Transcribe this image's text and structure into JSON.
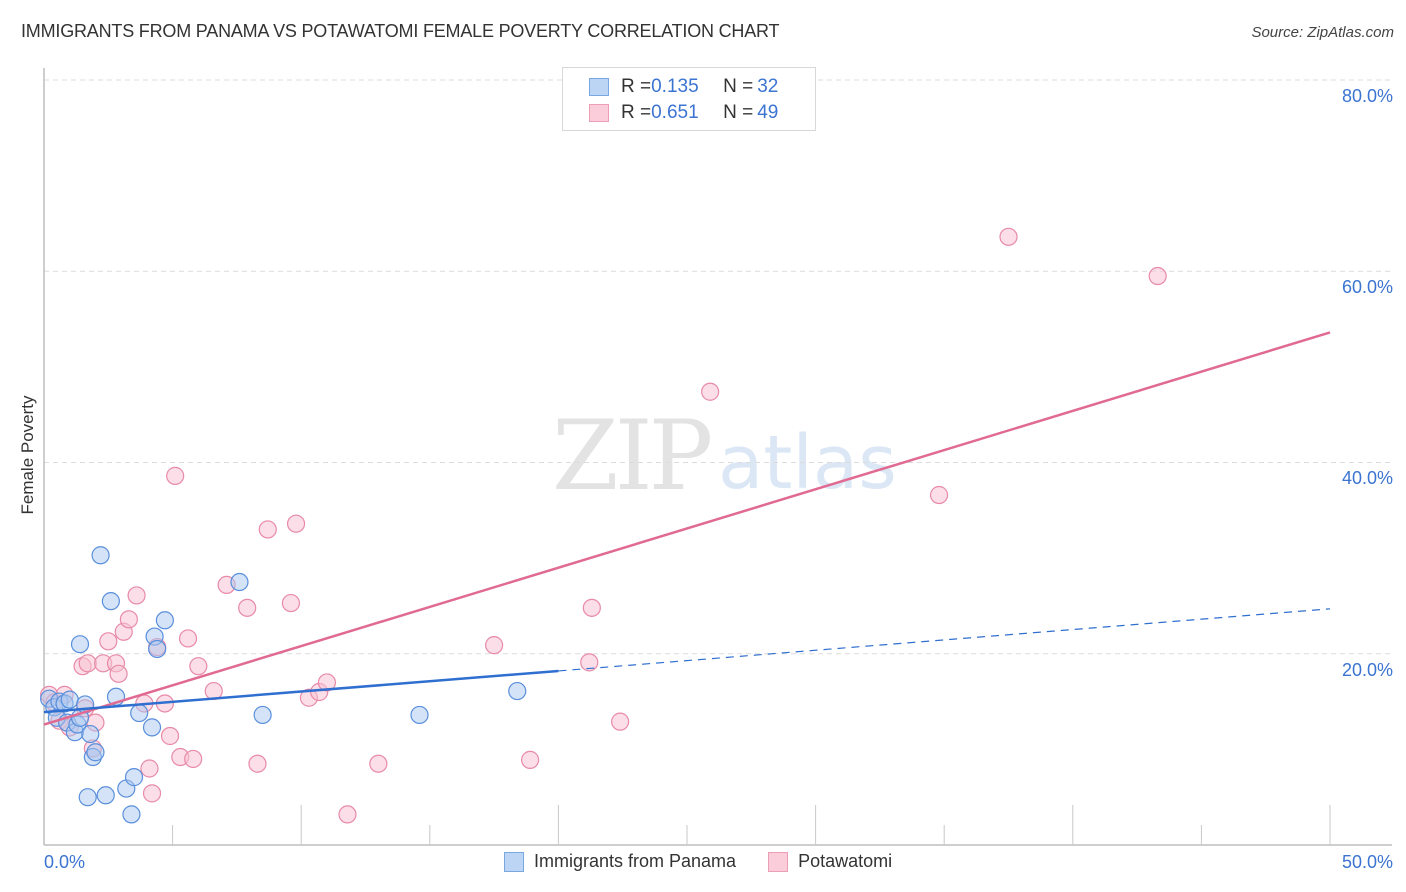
{
  "header": {
    "title": "IMMIGRANTS FROM PANAMA VS POTAWATOMI FEMALE POVERTY CORRELATION CHART",
    "source": "Source: ZipAtlas.com"
  },
  "watermark": {
    "zip": "ZIP",
    "atlas": "atlas"
  },
  "legend": {
    "rows": [
      {
        "r_label": "R = ",
        "r_value": "0.135",
        "n_label": "N = ",
        "n_value": "32",
        "color": "#a9c8f0"
      },
      {
        "r_label": "R = ",
        "r_value": "0.651",
        "n_label": "N = ",
        "n_value": "49",
        "color": "#f7b9cc"
      }
    ]
  },
  "bottom_legend": {
    "items": [
      {
        "label": "Immigrants from Panama",
        "color": "#a9c8f0"
      },
      {
        "label": "Potawatomi",
        "color": "#f7b9cc"
      }
    ]
  },
  "axes": {
    "x_min_label": "0.0%",
    "x_max_label": "50.0%",
    "y_ticks": [
      "20.0%",
      "40.0%",
      "60.0%",
      "80.0%"
    ],
    "y_label": "Female Poverty"
  },
  "colors": {
    "blue_fill": "#a9c8f0",
    "blue_stroke": "#5a8fdc",
    "blue_line": "#2f6fd0",
    "pink_fill": "#f7c3d3",
    "pink_stroke": "#e88aa8",
    "pink_line": "#e06a92",
    "tick_text": "#3b74d1"
  },
  "chart_data": {
    "type": "scatter",
    "title": "IMMIGRANTS FROM PANAMA VS POTAWATOMI FEMALE POVERTY CORRELATION CHART",
    "xlabel": "",
    "ylabel": "Female Poverty",
    "xlim": [
      0,
      50
    ],
    "ylim": [
      0,
      80
    ],
    "x_tick_labels": [
      "0.0%",
      "50.0%"
    ],
    "y_tick_labels": [
      "20.0%",
      "40.0%",
      "60.0%",
      "80.0%"
    ],
    "grid": "horizontal dashed",
    "legend_position": "top-center",
    "series": [
      {
        "name": "Immigrants from Panama",
        "R": 0.135,
        "N": 32,
        "trend": {
          "x0": 0,
          "y0": 13.9,
          "x1": 20,
          "y1": 18.2,
          "dashed_extension_to": {
            "x": 50,
            "y": 24.7
          }
        },
        "points": [
          [
            0.2,
            15.3
          ],
          [
            0.4,
            14.4
          ],
          [
            0.5,
            13.3
          ],
          [
            0.6,
            15.0
          ],
          [
            0.8,
            14.8
          ],
          [
            0.9,
            12.8
          ],
          [
            1.0,
            15.2
          ],
          [
            1.2,
            11.8
          ],
          [
            1.3,
            12.6
          ],
          [
            1.4,
            13.3
          ],
          [
            1.4,
            21.0
          ],
          [
            1.6,
            14.7
          ],
          [
            1.7,
            5.0
          ],
          [
            1.8,
            11.6
          ],
          [
            1.9,
            9.2
          ],
          [
            2.0,
            9.7
          ],
          [
            2.2,
            30.3
          ],
          [
            2.4,
            5.2
          ],
          [
            2.6,
            25.5
          ],
          [
            2.8,
            15.5
          ],
          [
            3.2,
            5.9
          ],
          [
            3.4,
            3.2
          ],
          [
            3.5,
            7.1
          ],
          [
            3.7,
            13.8
          ],
          [
            4.2,
            12.3
          ],
          [
            4.3,
            21.8
          ],
          [
            4.4,
            20.5
          ],
          [
            4.7,
            23.5
          ],
          [
            7.6,
            27.5
          ],
          [
            8.5,
            13.6
          ],
          [
            14.6,
            13.6
          ],
          [
            18.4,
            16.1
          ]
        ]
      },
      {
        "name": "Potawatomi",
        "R": 0.651,
        "N": 49,
        "trend": {
          "x0": 0,
          "y0": 12.6,
          "x1": 50,
          "y1": 53.6
        },
        "points": [
          [
            0.2,
            15.7
          ],
          [
            0.4,
            14.9
          ],
          [
            0.6,
            13.0
          ],
          [
            0.8,
            15.7
          ],
          [
            1.0,
            12.3
          ],
          [
            1.6,
            14.3
          ],
          [
            1.5,
            18.7
          ],
          [
            1.7,
            19.0
          ],
          [
            1.9,
            10.1
          ],
          [
            2.0,
            12.8
          ],
          [
            2.3,
            19.0
          ],
          [
            2.5,
            21.3
          ],
          [
            2.8,
            19.0
          ],
          [
            2.9,
            17.9
          ],
          [
            3.1,
            22.3
          ],
          [
            3.3,
            23.6
          ],
          [
            3.6,
            26.1
          ],
          [
            3.9,
            14.8
          ],
          [
            4.1,
            8.0
          ],
          [
            4.2,
            5.4
          ],
          [
            4.4,
            20.7
          ],
          [
            4.7,
            14.8
          ],
          [
            4.9,
            11.4
          ],
          [
            5.1,
            38.6
          ],
          [
            5.3,
            9.2
          ],
          [
            5.6,
            21.6
          ],
          [
            5.8,
            9.0
          ],
          [
            6.0,
            18.7
          ],
          [
            6.6,
            16.1
          ],
          [
            7.1,
            27.2
          ],
          [
            7.9,
            24.8
          ],
          [
            8.3,
            8.5
          ],
          [
            8.7,
            33.0
          ],
          [
            9.6,
            25.3
          ],
          [
            9.8,
            33.6
          ],
          [
            10.3,
            15.4
          ],
          [
            10.7,
            16.0
          ],
          [
            11.0,
            17.0
          ],
          [
            11.8,
            3.2
          ],
          [
            13.0,
            8.5
          ],
          [
            17.5,
            20.9
          ],
          [
            18.9,
            8.9
          ],
          [
            21.3,
            24.8
          ],
          [
            21.2,
            19.1
          ],
          [
            22.4,
            12.9
          ],
          [
            34.8,
            36.6
          ],
          [
            37.5,
            63.6
          ],
          [
            43.3,
            59.5
          ],
          [
            25.9,
            47.4
          ]
        ]
      }
    ]
  }
}
